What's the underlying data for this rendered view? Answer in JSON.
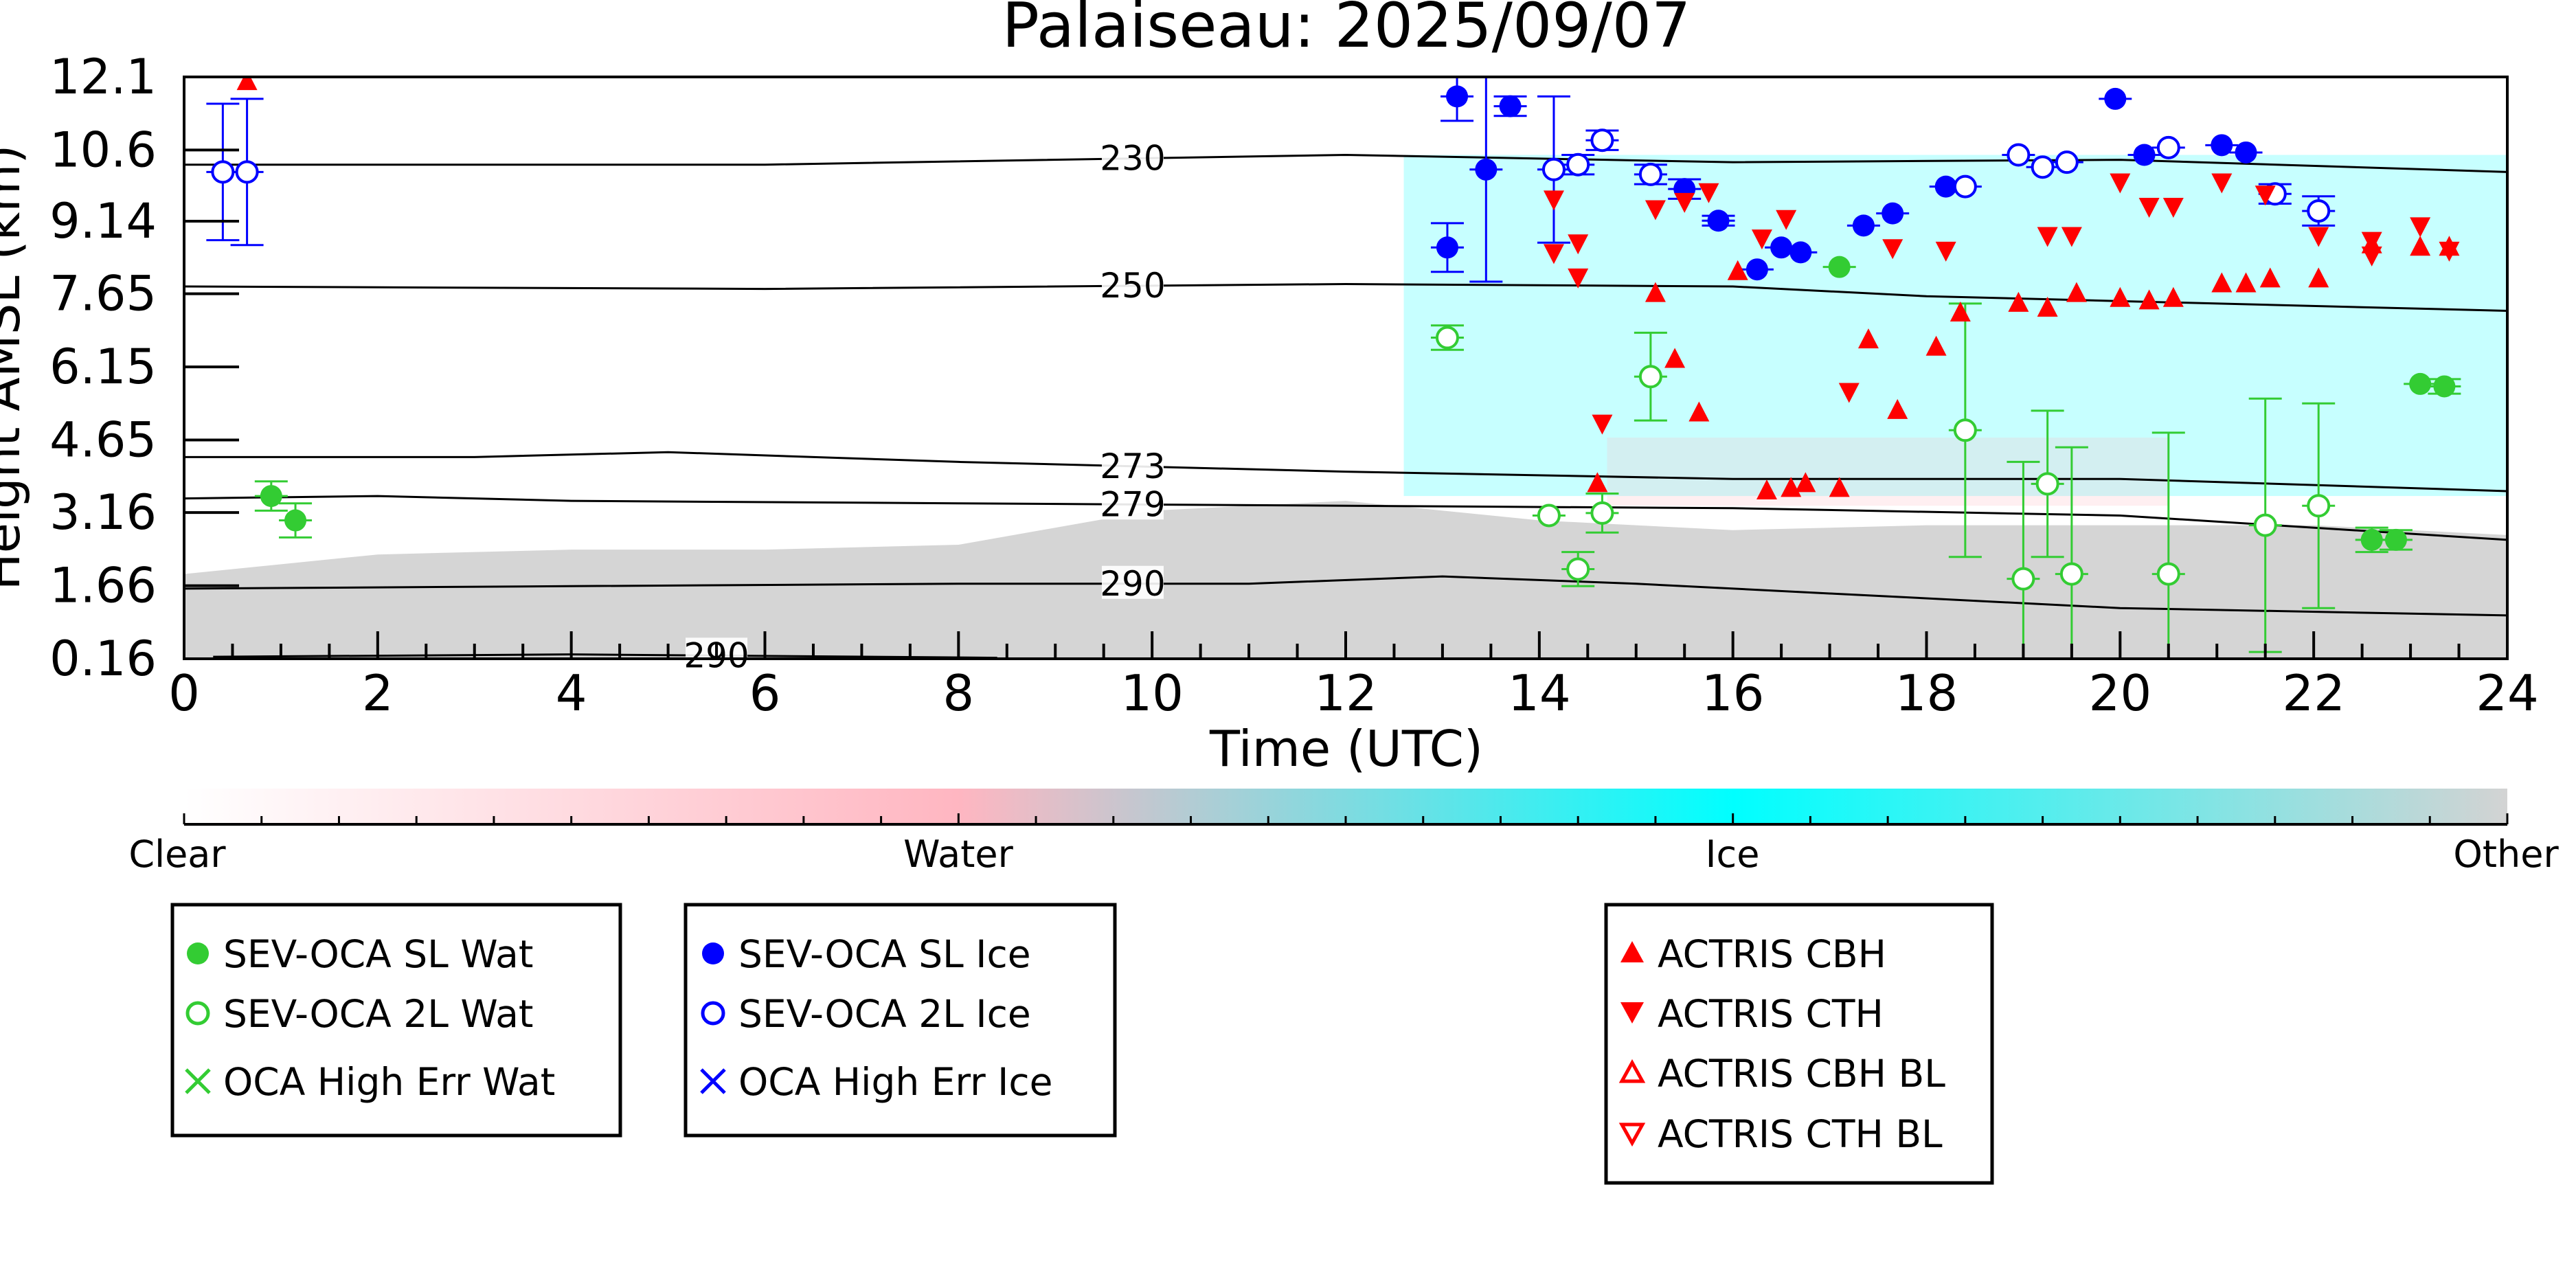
{
  "chart_data": {
    "type": "scatter",
    "title": "Palaiseau: 2025/09/07",
    "xlabel": "Time (UTC)",
    "ylabel": "Height AMSL (km)",
    "xlim": [
      0,
      24
    ],
    "ylim": [
      0.16,
      12.1
    ],
    "x_ticks": [
      0,
      2,
      4,
      6,
      8,
      10,
      12,
      14,
      16,
      18,
      20,
      22,
      24
    ],
    "y_ticks": [
      0.16,
      1.66,
      3.16,
      4.65,
      6.15,
      7.65,
      9.14,
      10.6,
      12.1
    ],
    "y_tick_labels": [
      "0.16",
      "1.66",
      "3.16",
      "4.65",
      "6.15",
      "7.65",
      "9.14",
      "10.6",
      "12.1"
    ],
    "grid": false,
    "colorbar": {
      "labels": [
        "Clear",
        "Water",
        "Ice",
        "Other"
      ],
      "colors": [
        "#ffffff",
        "#ffb6c1",
        "#00ffff",
        "#d3d3d3"
      ]
    },
    "background_layers": [
      {
        "class": "Other",
        "color": "#d3d3d3",
        "x": [
          0,
          24
        ],
        "bottom_km": 0.16,
        "top_km": [
          1.9,
          2.3,
          2.4,
          2.4,
          2.5,
          3.2,
          3.4,
          3.0,
          2.8,
          2.9,
          2.9,
          2.9,
          2.7
        ]
      },
      {
        "class": "Ice",
        "color": "#00ffff",
        "x_range": [
          12.6,
          24
        ],
        "bottom_km": 3.5,
        "top_km": 10.5
      },
      {
        "class": "Water",
        "color": "#ffb6c1",
        "x_range": [
          14.7,
          20.5
        ],
        "bottom_km": 3.3,
        "top_km": 4.7
      }
    ],
    "contours": [
      {
        "label": "230",
        "x": [
          0,
          6,
          12,
          16,
          20,
          24
        ],
        "y": [
          10.3,
          10.3,
          10.5,
          10.35,
          10.4,
          10.15
        ]
      },
      {
        "label": "250",
        "x": [
          0,
          6,
          12,
          16,
          18,
          20,
          24
        ],
        "y": [
          7.8,
          7.75,
          7.85,
          7.8,
          7.6,
          7.5,
          7.3
        ]
      },
      {
        "label": "273",
        "x": [
          0,
          3,
          5,
          8,
          12,
          16,
          20,
          24
        ],
        "y": [
          4.3,
          4.3,
          4.4,
          4.2,
          4.0,
          3.85,
          3.85,
          3.6
        ]
      },
      {
        "label": "279",
        "x": [
          0,
          2,
          4,
          8,
          12,
          16,
          20,
          24
        ],
        "y": [
          3.45,
          3.5,
          3.4,
          3.35,
          3.3,
          3.25,
          3.1,
          2.6
        ]
      },
      {
        "label": "290",
        "x": [
          0,
          4,
          8,
          11,
          13,
          15,
          17,
          20,
          24
        ],
        "y": [
          1.6,
          1.65,
          1.7,
          1.7,
          1.85,
          1.7,
          1.5,
          1.2,
          1.05
        ]
      },
      {
        "label": "290",
        "x": [
          0.3,
          4,
          8.4
        ],
        "y": [
          0.2,
          0.25,
          0.18
        ]
      }
    ],
    "series": [
      {
        "name": "SEV-OCA SL Wat",
        "marker": "filled-circle",
        "color": "#33cc33",
        "points": [
          {
            "x": 0.9,
            "y": 3.5,
            "err": 0.3
          },
          {
            "x": 1.15,
            "y": 3.0,
            "err": 0.35
          },
          {
            "x": 17.1,
            "y": 8.2,
            "err": 0.0
          },
          {
            "x": 22.6,
            "y": 2.6,
            "err": 0.25
          },
          {
            "x": 22.85,
            "y": 2.6,
            "err": 0.2
          },
          {
            "x": 23.1,
            "y": 5.8,
            "err": 0.0
          },
          {
            "x": 23.35,
            "y": 5.75,
            "err": 0.15
          }
        ]
      },
      {
        "name": "SEV-OCA 2L Wat",
        "marker": "open-circle",
        "color": "#33cc33",
        "points": [
          {
            "x": 13.05,
            "y": 6.75,
            "err": 0.25
          },
          {
            "x": 14.1,
            "y": 3.1,
            "err": 0.0
          },
          {
            "x": 14.4,
            "y": 2.0,
            "err": 0.35
          },
          {
            "x": 14.65,
            "y": 3.15,
            "err": 0.4
          },
          {
            "x": 15.15,
            "y": 5.95,
            "err": 0.9
          },
          {
            "x": 18.4,
            "y": 4.85,
            "err": 2.6
          },
          {
            "x": 19.0,
            "y": 1.8,
            "err": 2.4
          },
          {
            "x": 19.25,
            "y": 3.75,
            "err": 1.5
          },
          {
            "x": 19.5,
            "y": 1.9,
            "err": 2.6
          },
          {
            "x": 20.5,
            "y": 1.9,
            "err": 2.9
          },
          {
            "x": 21.5,
            "y": 2.9,
            "err": 2.6
          },
          {
            "x": 22.05,
            "y": 3.3,
            "err": 2.1
          }
        ]
      },
      {
        "name": "OCA High Err Wat",
        "marker": "x",
        "color": "#33cc33",
        "points": []
      },
      {
        "name": "SEV-OCA SL Ice",
        "marker": "filled-circle",
        "color": "#0000ff",
        "points": [
          {
            "x": 13.05,
            "y": 8.6,
            "err": 0.5
          },
          {
            "x": 13.15,
            "y": 11.7,
            "err": 0.5
          },
          {
            "x": 13.45,
            "y": 10.2,
            "err": 2.3
          },
          {
            "x": 13.7,
            "y": 11.5,
            "err": 0.2
          },
          {
            "x": 15.5,
            "y": 9.8,
            "err": 0.2
          },
          {
            "x": 15.85,
            "y": 9.15,
            "err": 0.1
          },
          {
            "x": 16.25,
            "y": 8.15,
            "err": 0.0
          },
          {
            "x": 16.5,
            "y": 8.6,
            "err": 0.0
          },
          {
            "x": 16.7,
            "y": 8.5,
            "err": 0.0
          },
          {
            "x": 17.35,
            "y": 9.05,
            "err": 0.0
          },
          {
            "x": 17.65,
            "y": 9.3,
            "err": 0.0
          },
          {
            "x": 18.2,
            "y": 9.85,
            "err": 0.0
          },
          {
            "x": 19.95,
            "y": 11.65,
            "err": 0.0
          },
          {
            "x": 20.25,
            "y": 10.5,
            "err": 0.0
          },
          {
            "x": 21.05,
            "y": 10.7,
            "err": 0.0
          },
          {
            "x": 21.3,
            "y": 10.55,
            "err": 0.0
          }
        ]
      },
      {
        "name": "SEV-OCA 2L Ice",
        "marker": "open-circle",
        "color": "#0000ff",
        "points": [
          {
            "x": 0.4,
            "y": 10.15,
            "err": 1.4
          },
          {
            "x": 0.65,
            "y": 10.15,
            "err": 1.5
          },
          {
            "x": 14.15,
            "y": 10.2,
            "err": 1.5
          },
          {
            "x": 14.4,
            "y": 10.3,
            "err": 0.2
          },
          {
            "x": 14.65,
            "y": 10.8,
            "err": 0.2
          },
          {
            "x": 15.15,
            "y": 10.1,
            "err": 0.2
          },
          {
            "x": 18.4,
            "y": 9.85,
            "err": 0.0
          },
          {
            "x": 18.95,
            "y": 10.5,
            "err": 0.0
          },
          {
            "x": 19.2,
            "y": 10.25,
            "err": 0.0
          },
          {
            "x": 19.45,
            "y": 10.35,
            "err": 0.0
          },
          {
            "x": 20.5,
            "y": 10.65,
            "err": 0.0
          },
          {
            "x": 21.6,
            "y": 9.7,
            "err": 0.2
          },
          {
            "x": 22.05,
            "y": 9.35,
            "err": 0.3
          }
        ]
      },
      {
        "name": "OCA High Err Ice",
        "marker": "x",
        "color": "#0000ff",
        "points": []
      },
      {
        "name": "ACTRIS CBH",
        "marker": "triangle-up",
        "color": "#ff0000",
        "points": [
          {
            "x": 0.65,
            "y": 12.0
          },
          {
            "x": 14.6,
            "y": 3.75
          },
          {
            "x": 15.2,
            "y": 7.65
          },
          {
            "x": 15.4,
            "y": 6.3
          },
          {
            "x": 15.65,
            "y": 5.2
          },
          {
            "x": 16.05,
            "y": 8.1
          },
          {
            "x": 16.35,
            "y": 3.6
          },
          {
            "x": 16.6,
            "y": 3.65
          },
          {
            "x": 16.75,
            "y": 3.75
          },
          {
            "x": 17.1,
            "y": 3.65
          },
          {
            "x": 17.4,
            "y": 6.7
          },
          {
            "x": 17.7,
            "y": 5.25
          },
          {
            "x": 18.1,
            "y": 6.55
          },
          {
            "x": 18.35,
            "y": 7.25
          },
          {
            "x": 18.95,
            "y": 7.45
          },
          {
            "x": 19.25,
            "y": 7.35
          },
          {
            "x": 19.55,
            "y": 7.65
          },
          {
            "x": 20.0,
            "y": 7.55
          },
          {
            "x": 20.3,
            "y": 7.5
          },
          {
            "x": 20.55,
            "y": 7.55
          },
          {
            "x": 21.05,
            "y": 7.85
          },
          {
            "x": 21.3,
            "y": 7.85
          },
          {
            "x": 21.55,
            "y": 7.95
          },
          {
            "x": 22.05,
            "y": 7.95
          },
          {
            "x": 22.6,
            "y": 8.65
          },
          {
            "x": 23.1,
            "y": 8.6
          },
          {
            "x": 23.4,
            "y": 8.6
          }
        ]
      },
      {
        "name": "ACTRIS CTH",
        "marker": "triangle-down",
        "color": "#ff0000",
        "points": [
          {
            "x": 14.15,
            "y": 9.6
          },
          {
            "x": 14.15,
            "y": 8.5
          },
          {
            "x": 14.4,
            "y": 8.7
          },
          {
            "x": 14.4,
            "y": 8.0
          },
          {
            "x": 14.65,
            "y": 5.0
          },
          {
            "x": 15.2,
            "y": 9.4
          },
          {
            "x": 15.5,
            "y": 9.55
          },
          {
            "x": 15.75,
            "y": 9.75
          },
          {
            "x": 16.3,
            "y": 8.8
          },
          {
            "x": 16.55,
            "y": 9.2
          },
          {
            "x": 17.2,
            "y": 5.65
          },
          {
            "x": 17.65,
            "y": 8.6
          },
          {
            "x": 18.2,
            "y": 8.55
          },
          {
            "x": 19.25,
            "y": 8.85
          },
          {
            "x": 19.5,
            "y": 8.85
          },
          {
            "x": 20.0,
            "y": 9.95
          },
          {
            "x": 20.3,
            "y": 9.45
          },
          {
            "x": 20.55,
            "y": 9.45
          },
          {
            "x": 21.05,
            "y": 9.95
          },
          {
            "x": 21.5,
            "y": 9.7
          },
          {
            "x": 22.05,
            "y": 8.85
          },
          {
            "x": 22.6,
            "y": 8.75
          },
          {
            "x": 23.1,
            "y": 9.05
          },
          {
            "x": 23.4,
            "y": 8.55
          },
          {
            "x": 22.6,
            "y": 8.45
          }
        ]
      },
      {
        "name": "ACTRIS CBH BL",
        "marker": "open-triangle-up",
        "color": "#ff0000",
        "points": []
      },
      {
        "name": "ACTRIS CTH BL",
        "marker": "open-triangle-down",
        "color": "#ff0000",
        "points": []
      }
    ]
  },
  "legend": {
    "box1": [
      "SEV-OCA SL Wat",
      "SEV-OCA 2L Wat",
      "OCA High Err Wat"
    ],
    "box2": [
      "SEV-OCA SL Ice",
      "SEV-OCA 2L Ice",
      "OCA High Err Ice"
    ],
    "box3": [
      "ACTRIS CBH",
      "ACTRIS CTH",
      "ACTRIS CBH BL",
      "ACTRIS CTH BL"
    ]
  }
}
